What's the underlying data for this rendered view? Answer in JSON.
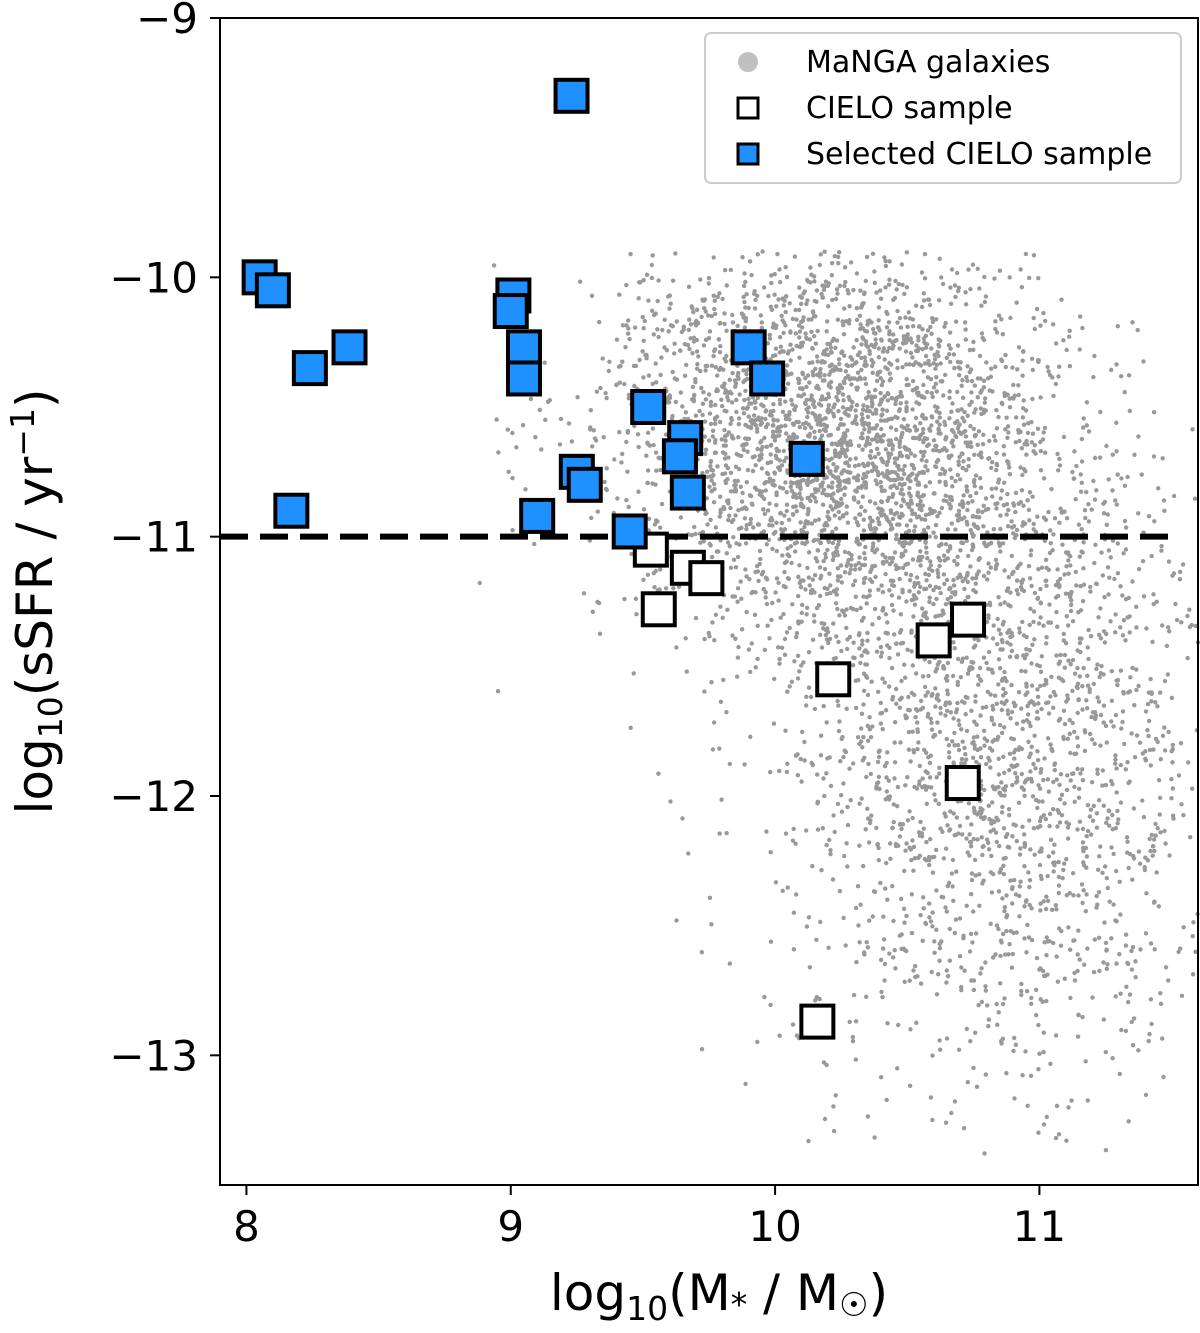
{
  "chart_data": {
    "type": "scatter",
    "xlabel": {
      "main": "log",
      "sub": "10",
      "rest": "(M",
      "star": "*",
      "tail": " / M",
      "sun": "☉",
      "close": ")"
    },
    "ylabel": {
      "main": "log",
      "sub": "10",
      "rest": "(sSFR / yr",
      "sup": "−1",
      "close": ")"
    },
    "xlim": [
      7.9,
      11.6
    ],
    "ylim": [
      -13.5,
      -9.0
    ],
    "xticks": [
      {
        "value": 8,
        "label": "8"
      },
      {
        "value": 9,
        "label": "9"
      },
      {
        "value": 10,
        "label": "10"
      },
      {
        "value": 11,
        "label": "11"
      }
    ],
    "yticks": [
      {
        "value": -9,
        "label": "−9"
      },
      {
        "value": -10,
        "label": "−10"
      },
      {
        "value": -11,
        "label": "−11"
      },
      {
        "value": -12,
        "label": "−12"
      },
      {
        "value": -13,
        "label": "−13"
      }
    ],
    "threshold_line": {
      "y": -11.0,
      "style": "dashed",
      "color": "#000000"
    },
    "legend": {
      "placement": "top-right",
      "entries": [
        {
          "label": "MaNGA galaxies",
          "marker": "circle",
          "color": "#c0c0c0"
        },
        {
          "label": "CIELO sample",
          "marker": "open-square",
          "color": "#000000"
        },
        {
          "label": "Selected CIELO sample",
          "marker": "filled-square",
          "color": "#1e90ff"
        }
      ]
    },
    "series": [
      {
        "name": "MaNGA galaxies",
        "color": "#999999",
        "distribution": "dense cloud, ~5000 points; star-forming clump near (10.3, -10.6), quiescent tail near (11.1, -12.0), spanning x 8.8–11.6, y -9.9 to -13.4"
      },
      {
        "name": "CIELO sample",
        "color": "#000000",
        "points": [
          [
            9.53,
            -11.05
          ],
          [
            9.67,
            -11.12
          ],
          [
            9.74,
            -11.16
          ],
          [
            9.56,
            -11.28
          ],
          [
            10.6,
            -11.4
          ],
          [
            10.73,
            -11.32
          ],
          [
            10.22,
            -11.55
          ],
          [
            10.71,
            -11.95
          ],
          [
            10.16,
            -12.87
          ]
        ]
      },
      {
        "name": "Selected CIELO sample",
        "color": "#1e90ff",
        "points": [
          [
            9.23,
            -9.3
          ],
          [
            8.05,
            -10.0
          ],
          [
            8.1,
            -10.05
          ],
          [
            9.01,
            -10.07
          ],
          [
            9.0,
            -10.13
          ],
          [
            8.39,
            -10.27
          ],
          [
            8.24,
            -10.35
          ],
          [
            9.05,
            -10.27
          ],
          [
            9.05,
            -10.39
          ],
          [
            9.9,
            -10.27
          ],
          [
            9.97,
            -10.39
          ],
          [
            9.52,
            -10.5
          ],
          [
            9.66,
            -10.62
          ],
          [
            9.64,
            -10.69
          ],
          [
            10.12,
            -10.7
          ],
          [
            9.25,
            -10.75
          ],
          [
            9.28,
            -10.8
          ],
          [
            9.67,
            -10.83
          ],
          [
            8.17,
            -10.9
          ],
          [
            9.1,
            -10.92
          ],
          [
            9.45,
            -10.98
          ]
        ]
      }
    ]
  }
}
